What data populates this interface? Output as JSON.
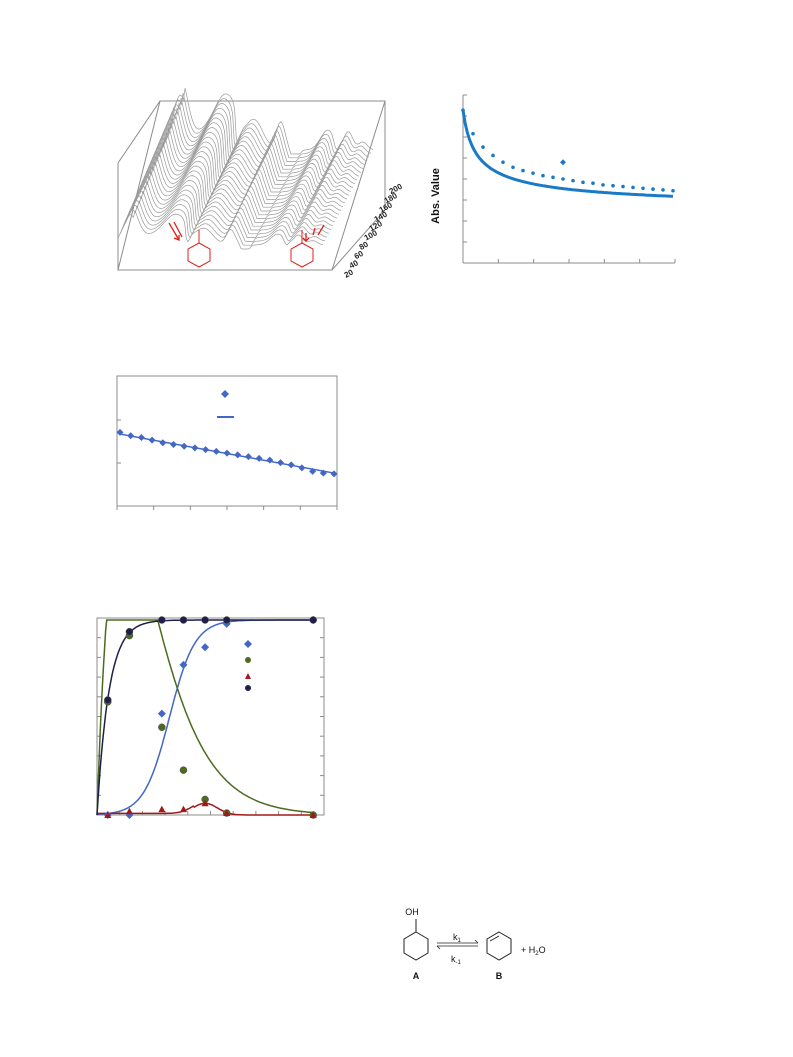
{
  "colors": {
    "spectra": "#9a9a9a",
    "annotation_red": "#e0201a",
    "decay_blue": "#1a7ac8",
    "linear_blue": "#4367c4",
    "product_blue": "#4367c4",
    "intermediate_green": "#4d6b1e",
    "minor_red": "#a31818",
    "total_navy": "#1f1f4a",
    "axis_gray": "#8c8c8c"
  },
  "figure_3d": {
    "depth_axis_tick_labels": [
      "20",
      "40",
      "60",
      "80",
      "100",
      "120",
      "140",
      "160",
      "180",
      "200"
    ],
    "annotation_icons": [
      "cyclohexanol-ring-icon",
      "cyclohexene-ring-icon",
      "red-arrow-icon"
    ]
  },
  "chart_data": [
    {
      "type": "scatter",
      "id": "decay",
      "ylabel": "Abs. Value",
      "xlabel": "",
      "x": [
        0,
        1,
        2,
        3,
        4,
        5,
        6,
        7,
        8,
        9,
        10,
        11,
        12,
        13,
        14,
        15,
        16,
        17,
        18,
        19,
        20,
        21
      ],
      "values": [
        0.91,
        0.77,
        0.69,
        0.64,
        0.6,
        0.57,
        0.55,
        0.535,
        0.52,
        0.51,
        0.5,
        0.49,
        0.48,
        0.475,
        0.465,
        0.46,
        0.455,
        0.45,
        0.445,
        0.44,
        0.435,
        0.43
      ],
      "outlier": {
        "x": 10,
        "y": 0.6
      },
      "ylim": [
        0,
        1
      ],
      "grid": false,
      "fit": "power-law decay"
    },
    {
      "type": "scatter",
      "id": "linear",
      "x": [
        0,
        1,
        2,
        3,
        4,
        5,
        6,
        7,
        8,
        9,
        10,
        11,
        12,
        13,
        14,
        15,
        16,
        17,
        18,
        19,
        20
      ],
      "values": [
        1.7,
        1.62,
        1.58,
        1.52,
        1.46,
        1.42,
        1.38,
        1.34,
        1.3,
        1.26,
        1.22,
        1.18,
        1.14,
        1.1,
        1.06,
        1.0,
        0.95,
        0.88,
        0.8,
        0.76,
        0.74
      ],
      "ylim": [
        0,
        3
      ],
      "grid": false,
      "legend": {
        "position": "top-center",
        "entries": [
          {
            "marker": "diamond"
          },
          {
            "marker": "line"
          }
        ]
      }
    },
    {
      "type": "line",
      "id": "kinetics",
      "xlim": [
        0,
        21
      ],
      "ylim": [
        0,
        1
      ],
      "grid": false,
      "legend": {
        "position": "top-right",
        "entries": [
          {
            "marker": "diamond"
          },
          {
            "marker": "circle"
          },
          {
            "marker": "triangle"
          },
          {
            "marker": "circle"
          }
        ]
      },
      "series": [
        {
          "id": "blue_diamond",
          "marker": "diamond",
          "x": [
            1,
            3,
            6,
            8,
            10,
            12,
            20
          ],
          "values": [
            0.0,
            0.0,
            0.52,
            0.77,
            0.86,
            0.98,
            1.0
          ]
        },
        {
          "id": "green_circle",
          "marker": "circle",
          "x": [
            1,
            3,
            6,
            8,
            10,
            12,
            20
          ],
          "values": [
            0.58,
            0.92,
            0.45,
            0.23,
            0.08,
            0.01,
            0.0
          ]
        },
        {
          "id": "red_triangle",
          "marker": "triangle",
          "x": [
            1,
            3,
            6,
            8,
            10,
            12,
            20
          ],
          "values": [
            0.0,
            0.02,
            0.03,
            0.03,
            0.06,
            0.01,
            0.0
          ]
        },
        {
          "id": "navy_circle",
          "marker": "circle",
          "x": [
            1,
            3,
            6,
            8,
            10,
            12,
            20
          ],
          "values": [
            0.59,
            0.94,
            1.0,
            1.0,
            1.0,
            1.0,
            1.0
          ]
        }
      ]
    }
  ],
  "reaction": {
    "reactant_substituent": "OH",
    "forward_rate": "k",
    "forward_rate_sub": "1",
    "reverse_rate": "k",
    "reverse_rate_sub": "-1",
    "plus": "+ H",
    "water_sub": "2",
    "water_tail": "O",
    "label_reactant": "A",
    "label_product": "B"
  }
}
